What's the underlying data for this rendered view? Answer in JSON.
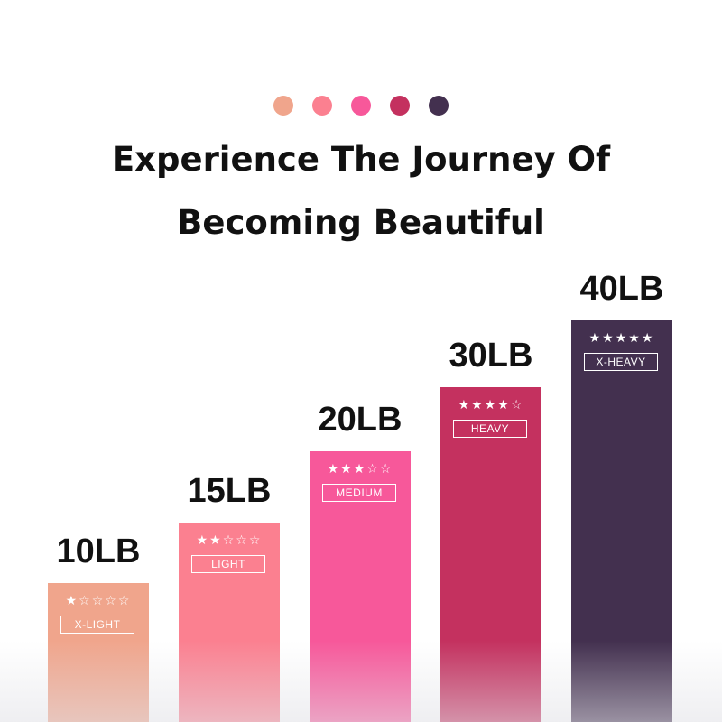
{
  "header": {
    "dot_colors": [
      "#F0A58C",
      "#FB8090",
      "#F7589A",
      "#C4315F",
      "#43304F"
    ],
    "title_line1": "Experience The Journey Of",
    "title_line2": "Becoming Beautiful"
  },
  "chart_data": {
    "type": "bar",
    "categories": [
      "X-LIGHT",
      "LIGHT",
      "MEDIUM",
      "HEAVY",
      "X-HEAVY"
    ],
    "values": [
      10,
      15,
      20,
      30,
      40
    ],
    "value_labels": [
      "10LB",
      "15LB",
      "20LB",
      "30LB",
      "40LB"
    ],
    "star_ratings": [
      1,
      2,
      3,
      4,
      5
    ],
    "colors": [
      "#F0A58C",
      "#FB8090",
      "#F7589A",
      "#C4315F",
      "#43304F"
    ],
    "title": "",
    "xlabel": "",
    "ylabel": "",
    "grid": false
  }
}
